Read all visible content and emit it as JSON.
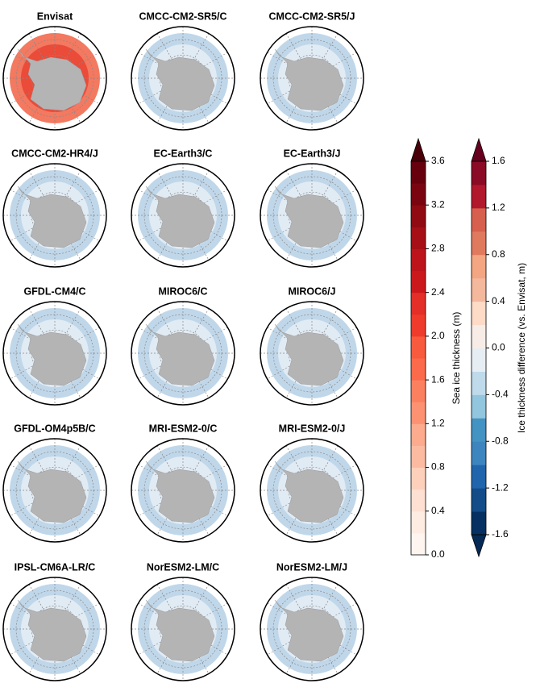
{
  "panels": [
    {
      "title": "Envisat"
    },
    {
      "title": "CMCC-CM2-SR5/C"
    },
    {
      "title": "CMCC-CM2-SR5/J"
    },
    {
      "title": "CMCC-CM2-HR4/J"
    },
    {
      "title": "EC-Earth3/C"
    },
    {
      "title": "EC-Earth3/J"
    },
    {
      "title": "GFDL-CM4/C"
    },
    {
      "title": "MIROC6/C"
    },
    {
      "title": "MIROC6/J"
    },
    {
      "title": "GFDL-OM4p5B/C"
    },
    {
      "title": "MRI-ESM2-0/C"
    },
    {
      "title": "MRI-ESM2-0/J"
    },
    {
      "title": "IPSL-CM6A-LR/C"
    },
    {
      "title": "NorESM2-LM/C"
    },
    {
      "title": "NorESM2-LM/J"
    }
  ],
  "colorbars": [
    {
      "label": "Sea ice thickness (m)",
      "lim": [
        0,
        3.6
      ],
      "ticks": [
        {
          "value": 0,
          "label": "0.0"
        },
        0.4,
        0.8,
        1.2,
        1.6,
        {
          "value": 2,
          "label": "2.0"
        },
        2.4,
        2.8,
        3.2,
        3.6
      ],
      "colors": [
        "#fff5f0",
        "#feebe2",
        "#fee0d2",
        "#fdd0bb",
        "#fcbba1",
        "#fcab8f",
        "#fc9272",
        "#fb8060",
        "#fb6a4a",
        "#f85a3e",
        "#ef3b2c",
        "#e32f27",
        "#cb181d",
        "#bc141a",
        "#a50f15",
        "#8f0a12",
        "#7a0510",
        "#67000d"
      ],
      "extend_max": "#4a0008"
    },
    {
      "label": "Ice thickness difference (vs. Envisat, m)",
      "lim": [
        -1.6,
        1.6
      ],
      "ticks": [
        -1.6,
        -1.2,
        -0.8,
        -0.4,
        {
          "value": 0,
          "label": "0.0"
        },
        0.4,
        0.8,
        1.2,
        1.6
      ],
      "colors": [
        "#053061",
        "#134c88",
        "#2166ac",
        "#3d85bf",
        "#4393c3",
        "#92c5de",
        "#bfdaea",
        "#e6eef4",
        "#f7ece6",
        "#fddbc7",
        "#f4b89c",
        "#f4a582",
        "#e07a5f",
        "#d6604d",
        "#b2182b",
        "#8b0a25"
      ],
      "extend_min": "#042a55",
      "extend_max": "#67001f"
    }
  ]
}
